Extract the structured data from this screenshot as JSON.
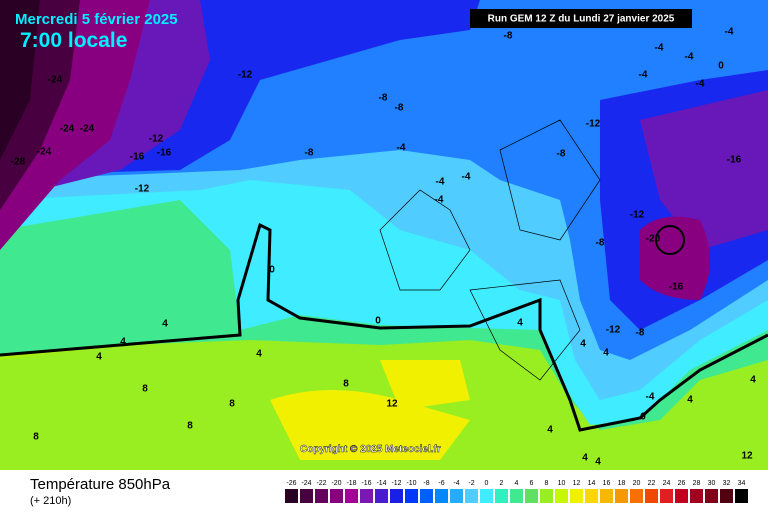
{
  "header": {
    "date": "Mercredi 5 février 2025",
    "time": "7:00 locale",
    "run": "Run GEM 12 Z du Lundi 27 janvier 2025"
  },
  "footer": {
    "title": "Température 850hPa",
    "lead": "(+ 210h)",
    "copyright": "Copyright © 2025 Meteociel.fr"
  },
  "legend": {
    "ticks": [
      -26,
      -24,
      -22,
      -20,
      -18,
      -16,
      -14,
      -12,
      -10,
      -8,
      -6,
      -4,
      -2,
      0,
      2,
      4,
      6,
      8,
      10,
      12,
      14,
      16,
      18,
      20,
      22,
      24,
      26,
      28,
      30,
      32,
      34
    ],
    "colors": [
      "#2a0024",
      "#480040",
      "#66005c",
      "#85007a",
      "#a30096",
      "#7a18b4",
      "#4a1cd0",
      "#1820e6",
      "#0038ff",
      "#0060ff",
      "#0088ff",
      "#28aaff",
      "#50ccff",
      "#40ecff",
      "#30f0c0",
      "#40e890",
      "#60e060",
      "#98ee20",
      "#c8f800",
      "#f0f000",
      "#f8d800",
      "#f8b800",
      "#f89800",
      "#f87000",
      "#f04800",
      "#e02020",
      "#c00020",
      "#a00020",
      "#800018",
      "#500010",
      "#000000"
    ]
  },
  "map": {
    "labels": [
      -12,
      -8,
      -8,
      -8,
      -12,
      -8,
      -4,
      -8,
      -4,
      -4,
      -4,
      -12,
      -8,
      -20,
      -16,
      -16,
      -4,
      -4,
      -4,
      0,
      -4,
      -4,
      -24,
      -24,
      -24,
      -24,
      -28,
      -12,
      -16,
      -16,
      -12,
      0,
      0,
      4,
      4,
      4,
      4,
      8,
      8,
      8,
      8,
      8,
      12,
      4,
      4,
      4,
      -12,
      -8,
      0,
      4,
      4,
      4,
      4,
      12,
      -4,
      4
    ]
  }
}
